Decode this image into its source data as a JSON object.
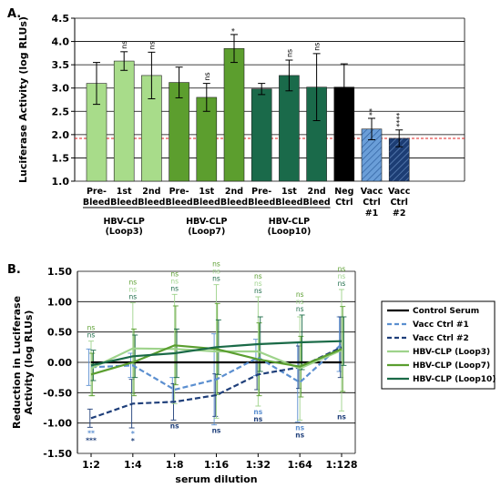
{
  "chart_data": [
    {
      "type": "bar",
      "panel_label": "A.",
      "ylabel": "Luciferase Activity (log RLUs)",
      "ylim": [
        1.0,
        4.5
      ],
      "yticks": [
        "1.0",
        "1.5",
        "2.0",
        "2.5",
        "3.0",
        "3.5",
        "4.0",
        "4.5"
      ],
      "reference_line": 1.92,
      "grid": true,
      "bars": [
        {
          "label": [
            "Pre-",
            "Bleed"
          ],
          "value": 3.1,
          "err": 0.45,
          "color": "#a8dc8a",
          "pattern": "",
          "sig": ""
        },
        {
          "label": [
            "1st",
            "Bleed"
          ],
          "value": 3.58,
          "err": 0.2,
          "color": "#a8dc8a",
          "pattern": "",
          "sig": "ns"
        },
        {
          "label": [
            "2nd",
            "Bleed"
          ],
          "value": 3.27,
          "err": 0.5,
          "color": "#a8dc8a",
          "pattern": "",
          "sig": "ns"
        },
        {
          "label": [
            "Pre-",
            "Bleed"
          ],
          "value": 3.12,
          "err": 0.33,
          "color": "#5c9e2e",
          "pattern": "",
          "sig": ""
        },
        {
          "label": [
            "1st",
            "Bleed"
          ],
          "value": 2.8,
          "err": 0.3,
          "color": "#5c9e2e",
          "pattern": "",
          "sig": "ns"
        },
        {
          "label": [
            "2nd",
            "Bleed"
          ],
          "value": 3.85,
          "err": 0.3,
          "color": "#5c9e2e",
          "pattern": "",
          "sig": "*"
        },
        {
          "label": [
            "Pre-",
            "Bleed"
          ],
          "value": 2.98,
          "err": 0.12,
          "color": "#1a6a4a",
          "pattern": "",
          "sig": ""
        },
        {
          "label": [
            "1st",
            "Bleed"
          ],
          "value": 3.27,
          "err": 0.33,
          "color": "#1a6a4a",
          "pattern": "",
          "sig": "ns"
        },
        {
          "label": [
            "2nd",
            "Bleed"
          ],
          "value": 3.02,
          "err": 0.72,
          "color": "#1a6a4a",
          "pattern": "",
          "sig": "ns"
        },
        {
          "label": [
            "Neg",
            "Ctrl"
          ],
          "value": 3.02,
          "err": 0.5,
          "color": "#000000",
          "pattern": "",
          "sig": ""
        },
        {
          "label": [
            "Vacc",
            "Ctrl",
            "#1"
          ],
          "value": 2.12,
          "err": 0.23,
          "color": "#6a9ed8",
          "pattern": "light",
          "sig": "**"
        },
        {
          "label": [
            "Vacc",
            "Ctrl",
            "#2"
          ],
          "value": 1.92,
          "err": 0.18,
          "color": "#1c3d74",
          "pattern": "dark",
          "sig": "****"
        }
      ],
      "groups": [
        {
          "lines": [
            "HBV-CLP",
            "(Loop3)"
          ],
          "bars": [
            0,
            2
          ]
        },
        {
          "lines": [
            "HBV-CLP",
            "(Loop7)"
          ],
          "bars": [
            3,
            5
          ]
        },
        {
          "lines": [
            "HBV-CLP",
            "(Loop10)"
          ],
          "bars": [
            6,
            8
          ]
        }
      ]
    },
    {
      "type": "line",
      "panel_label": "B.",
      "xlabel": "serum dilution",
      "ylabel": [
        "Reduction in Luciferase",
        "Activity (log RLUs)"
      ],
      "categories": [
        "1:2",
        "1:4",
        "1:8",
        "1:16",
        "1:32",
        "1:64",
        "1:128"
      ],
      "ylim": [
        -1.5,
        1.5
      ],
      "yticks": [
        "-1.50",
        "-1.00",
        "-0.50",
        "0.00",
        "0.50",
        "1.00",
        "1.50"
      ],
      "grid": true,
      "legend_position": "right",
      "series": [
        {
          "name": "Control Serum",
          "values": [
            0,
            0,
            0,
            0,
            0,
            0,
            0
          ],
          "color": "#000000",
          "dash": false,
          "err": []
        },
        {
          "name": "Vacc Ctrl #1",
          "values": [
            -0.08,
            -0.05,
            -0.45,
            -0.28,
            0.08,
            -0.33,
            0.3
          ],
          "color": "#5b8fd0",
          "dash": true,
          "err": [
            0.3,
            0.2,
            0.2,
            0.75,
            0.3,
            0.65,
            0.45
          ]
        },
        {
          "name": "Vacc Ctrl #2",
          "values": [
            -0.92,
            -0.68,
            -0.65,
            -0.54,
            -0.2,
            -0.08,
            0.25
          ],
          "color": "#1f3f7a",
          "dash": true,
          "err": [
            0.15,
            0.4,
            0.3,
            0.35,
            0.25,
            0.35,
            0.5
          ]
        },
        {
          "name": "HBV-CLP (Loop3)",
          "values": [
            -0.1,
            0.23,
            0.22,
            0.18,
            0.18,
            -0.1,
            0.2
          ],
          "color": "#9ed38b",
          "dash": false,
          "err": [
            0.45,
            0.75,
            0.9,
            1.1,
            0.9,
            0.85,
            1.0
          ]
        },
        {
          "name": "HBV-CLP (Loop7)",
          "values": [
            -0.2,
            0.0,
            0.28,
            0.22,
            0.05,
            -0.07,
            0.22
          ],
          "color": "#5a9e2f",
          "dash": false,
          "err": [
            0.35,
            0.55,
            0.65,
            0.75,
            0.6,
            0.5,
            0.7
          ]
        },
        {
          "name": "HBV-CLP (Loop10)",
          "values": [
            -0.05,
            0.1,
            0.15,
            0.25,
            0.3,
            0.33,
            0.35
          ],
          "color": "#1a6a47",
          "dash": false,
          "err": [
            0.25,
            0.35,
            0.4,
            0.45,
            0.45,
            0.45,
            0.4
          ]
        }
      ],
      "significance_labels": [
        {
          "x": 0,
          "above": [
            "ns",
            "ns"
          ],
          "above_colors": [
            "#5a9e2f",
            "#1a6a47"
          ],
          "below": [
            "**",
            "***"
          ],
          "below_colors": [
            "#5b8fd0",
            "#1f3f7a"
          ]
        },
        {
          "x": 1,
          "above": [
            "ns",
            "ns",
            "ns"
          ],
          "above_colors": [
            "#5a9e2f",
            "#9ed38b",
            "#1a6a47"
          ],
          "below": [
            "*",
            "*"
          ],
          "below_colors": [
            "#5b8fd0",
            "#1f3f7a"
          ]
        },
        {
          "x": 2,
          "above": [
            "ns",
            "ns",
            "ns"
          ],
          "above_colors": [
            "#5a9e2f",
            "#9ed38b",
            "#1a6a47"
          ],
          "below": [
            "ns"
          ],
          "below_colors": [
            "#1f3f7a"
          ]
        },
        {
          "x": 3,
          "above": [
            "ns",
            "ns",
            "ns"
          ],
          "above_colors": [
            "#5a9e2f",
            "#9ed38b",
            "#1a6a47"
          ],
          "below": [
            "ns"
          ],
          "below_colors": [
            "#1f3f7a"
          ]
        },
        {
          "x": 4,
          "above": [
            "ns",
            "ns",
            "ns"
          ],
          "above_colors": [
            "#5a9e2f",
            "#9ed38b",
            "#1a6a47"
          ],
          "below": [
            "ns",
            "ns"
          ],
          "below_colors": [
            "#5b8fd0",
            "#1f3f7a"
          ]
        },
        {
          "x": 5,
          "above": [
            "ns",
            "ns",
            "ns"
          ],
          "above_colors": [
            "#5a9e2f",
            "#9ed38b",
            "#1a6a47"
          ],
          "below": [
            "ns",
            "ns"
          ],
          "below_colors": [
            "#5b8fd0",
            "#1f3f7a"
          ]
        },
        {
          "x": 6,
          "above": [
            "ns",
            "ns",
            "ns"
          ],
          "above_colors": [
            "#5a9e2f",
            "#9ed38b",
            "#1a6a47"
          ],
          "below": [
            "ns"
          ],
          "below_colors": [
            "#1f3f7a"
          ]
        }
      ]
    }
  ]
}
